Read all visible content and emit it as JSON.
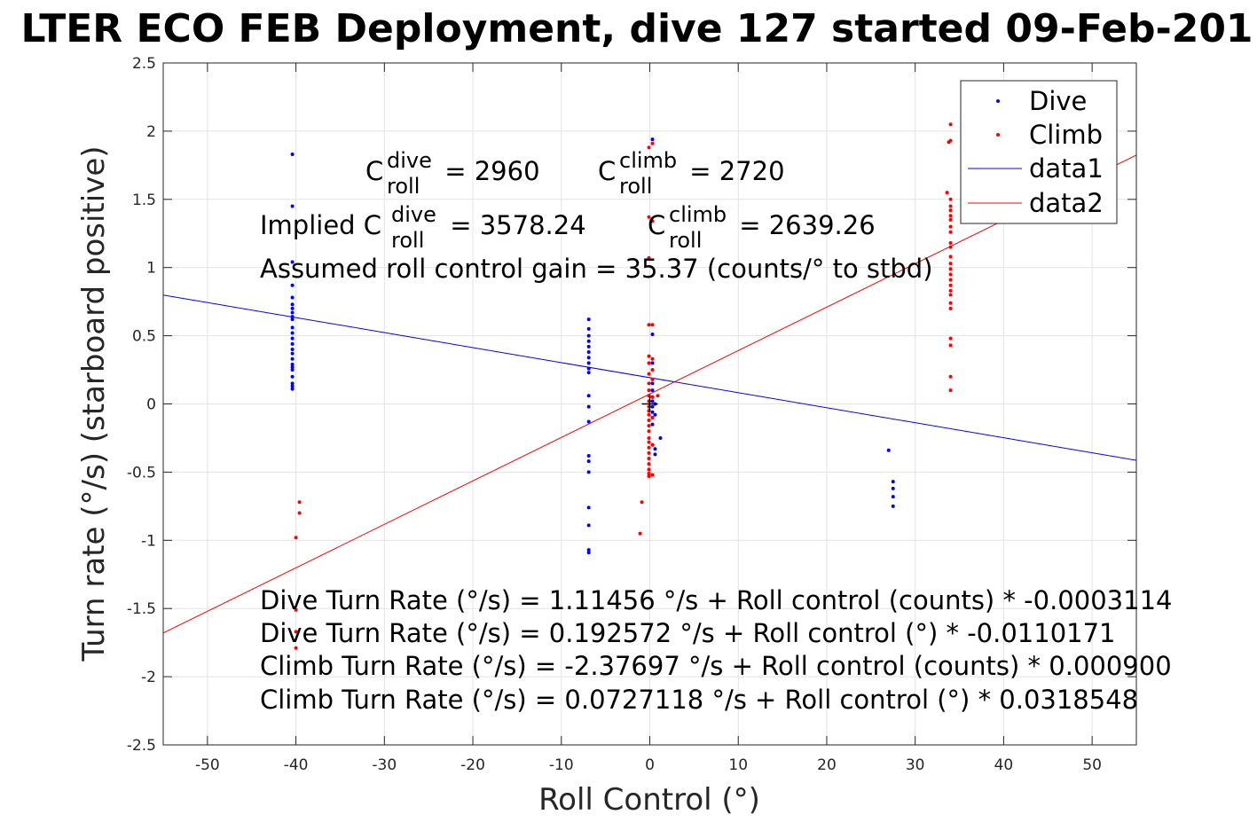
{
  "chart_data": {
    "type": "scatter",
    "title": "LTER ECO FEB Deployment, dive 127 started 09-Feb-201",
    "xlabel": "Roll Control (°)",
    "ylabel": "Turn rate (°/s) (starboard positive)",
    "xlim": [
      -55,
      55
    ],
    "ylim": [
      -2.5,
      2.5
    ],
    "xticks": [
      -50,
      -40,
      -30,
      -20,
      -10,
      0,
      10,
      20,
      30,
      40,
      50
    ],
    "yticks": [
      -2.5,
      -2,
      -1.5,
      -1,
      -0.5,
      0,
      0.5,
      1,
      1.5,
      2,
      2.5
    ],
    "xtick_labels": [
      "-50",
      "-40",
      "-30",
      "-20",
      "-10",
      "0",
      "10",
      "20",
      "30",
      "40",
      "50"
    ],
    "ytick_labels": [
      "-2.5",
      "-2",
      "-1.5",
      "-1",
      "-0.5",
      "0",
      "0.5",
      "1",
      "1.5",
      "2",
      "2.5"
    ],
    "grid": true,
    "legend_position": "top-right",
    "series": [
      {
        "name": "Dive",
        "kind": "points",
        "color": "#0000ff",
        "x": [
          -40.4,
          -40.4,
          -40.4,
          -40.4,
          -40.4,
          -40.4,
          -40.4,
          -40.4,
          -40.4,
          -40.4,
          -40.4,
          -40.4,
          -40.4,
          -40.4,
          -40.4,
          -40.4,
          -40.4,
          -40.4,
          -40.4,
          -40.4,
          -40.4,
          -40.4,
          -40.4,
          -40.4,
          -6.9,
          -6.9,
          -6.9,
          -6.9,
          -6.9,
          -6.9,
          -6.9,
          -6.9,
          -6.9,
          -6.9,
          -6.9,
          -6.9,
          -6.9,
          -6.9,
          -6.9,
          -6.9,
          -6.9,
          -6.9,
          -6.9,
          -6.9,
          0.3,
          0.3,
          0.3,
          0.3,
          0.3,
          0.3,
          0.3,
          0.3,
          0.3,
          0.3,
          0.3,
          0.3,
          0.6,
          0.6,
          0.6,
          0.6,
          1.2,
          27.0,
          27.5,
          27.5,
          27.5,
          27.5
        ],
        "y": [
          1.83,
          1.45,
          1.04,
          0.87,
          0.78,
          0.73,
          0.7,
          0.67,
          0.64,
          0.62,
          0.56,
          0.52,
          0.48,
          0.44,
          0.4,
          0.37,
          0.33,
          0.29,
          0.27,
          0.25,
          0.2,
          0.15,
          0.13,
          0.11,
          0.62,
          0.55,
          0.5,
          0.46,
          0.42,
          0.38,
          0.34,
          0.3,
          0.26,
          0.23,
          0.06,
          -0.02,
          -0.13,
          -0.38,
          -0.42,
          -0.5,
          -0.76,
          -0.89,
          -1.07,
          -1.09,
          1.94,
          0.51,
          0.3,
          0.15,
          0.1,
          0.05,
          0.02,
          -0.02,
          -0.06,
          -0.1,
          -0.15,
          -0.3,
          -0.08,
          -0.33,
          -0.37,
          0.0,
          -0.25,
          -0.34,
          -0.57,
          -0.62,
          -0.68,
          -0.75
        ]
      },
      {
        "name": "Climb",
        "kind": "points",
        "color": "#ff0000",
        "x": [
          -40.0,
          -40.0,
          -40.0,
          -39.6,
          -39.6,
          -40.0,
          -0.9,
          -1.1,
          -0.1,
          -0.1,
          -0.1,
          -0.1,
          -0.1,
          -0.1,
          -0.1,
          -0.1,
          -0.1,
          -0.1,
          -0.1,
          -0.1,
          -0.1,
          -0.1,
          -0.1,
          -0.1,
          -0.1,
          -0.1,
          -0.1,
          -0.1,
          -0.1,
          -0.1,
          -0.1,
          -0.1,
          -0.1,
          -0.1,
          0.3,
          0.3,
          0.3,
          0.3,
          0.3,
          0.3,
          0.3,
          0.3,
          0.3,
          0.3,
          0.9,
          33.6,
          33.8,
          34.0,
          34.0,
          34.0,
          34.0,
          34.0,
          34.0,
          34.0,
          34.0,
          34.0,
          34.0,
          34.0,
          34.0,
          34.0,
          34.0,
          34.0,
          34.0,
          34.0,
          34.0,
          34.0,
          34.0,
          34.0,
          34.0,
          34.0,
          34.0,
          34.0
        ],
        "y": [
          -0.98,
          -1.51,
          -1.79,
          -0.72,
          -0.8,
          -1.67,
          -0.72,
          -0.95,
          1.88,
          1.37,
          1.07,
          0.58,
          0.35,
          0.3,
          0.22,
          0.15,
          0.1,
          0.06,
          0.02,
          -0.02,
          -0.05,
          -0.08,
          -0.12,
          -0.16,
          -0.2,
          -0.25,
          -0.28,
          -0.32,
          -0.36,
          -0.4,
          -0.44,
          -0.48,
          -0.51,
          -0.53,
          1.91,
          1.34,
          0.58,
          0.33,
          0.25,
          0.18,
          0.05,
          -0.1,
          -0.3,
          -0.52,
          0.06,
          1.55,
          1.92,
          2.05,
          1.93,
          1.5,
          1.45,
          1.42,
          1.38,
          1.3,
          1.26,
          1.18,
          1.15,
          1.08,
          1.03,
          0.99,
          0.95,
          0.91,
          0.87,
          0.83,
          0.8,
          0.74,
          0.7,
          0.48,
          0.43,
          0.2,
          0.1,
          1.35
        ]
      },
      {
        "name": "data1",
        "kind": "line",
        "color": "#0000ff",
        "x": [
          -55,
          55
        ],
        "y": [
          0.798513,
          -0.413369
        ]
      },
      {
        "name": "data2",
        "kind": "line",
        "color": "#ff0000",
        "x": [
          -55,
          55
        ],
        "y": [
          -1.679302,
          1.824726
        ]
      },
      {
        "name": "",
        "kind": "marker",
        "color": "#000000",
        "x": [
          0
        ],
        "y": [
          0
        ]
      }
    ],
    "annotations": {
      "c_roll_dive": {
        "base": "C",
        "sup": "dive",
        "sub": "roll",
        "value": " = 2960"
      },
      "c_roll_climb": {
        "base": "C",
        "sup": "climb",
        "sub": "roll",
        "value": " = 2720"
      },
      "implied_dive": {
        "prefix": "Implied C",
        "sup": "dive",
        "sub": "roll",
        "value": " = 3578.24"
      },
      "implied_climb": {
        "base": "C",
        "sup": "climb",
        "sub": "roll",
        "value": " = 2639.26"
      },
      "gain": "Assumed roll control gain = 35.37 (counts/° to stbd)",
      "fits": [
        "Dive Turn Rate (°/s) = 1.11456 °/s + Roll control (counts) * -0.0003114",
        "Dive Turn Rate (°/s) = 0.192572 °/s + Roll control (°) * -0.0110171",
        "Climb Turn Rate (°/s) = -2.37697 °/s + Roll control (counts) * 0.000900",
        "Climb Turn Rate (°/s) = 0.0727118 °/s + Roll control (°) * 0.0318548"
      ]
    }
  }
}
